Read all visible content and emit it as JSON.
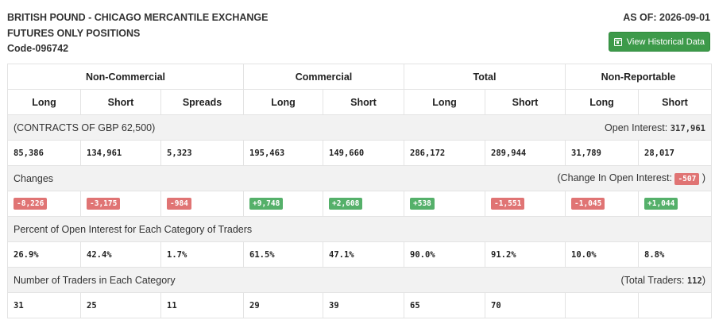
{
  "header": {
    "title_line1": "BRITISH POUND - CHICAGO MERCANTILE EXCHANGE",
    "title_line2": "FUTURES ONLY POSITIONS",
    "code": "Code-096742",
    "as_of": "AS OF: 2026-09-01",
    "history_button": "View Historical Data"
  },
  "groups": [
    "Non-Commercial",
    "Commercial",
    "Total",
    "Non-Reportable"
  ],
  "subheaders": [
    "Long",
    "Short",
    "Spreads",
    "Long",
    "Short",
    "Long",
    "Short",
    "Long",
    "Short"
  ],
  "contracts": {
    "label": "(CONTRACTS OF GBP 62,500)",
    "open_interest_label": "Open Interest:",
    "open_interest_value": "317,961",
    "values": [
      "85,386",
      "134,961",
      "5,323",
      "195,463",
      "149,660",
      "286,172",
      "289,944",
      "31,789",
      "28,017"
    ]
  },
  "changes": {
    "label": "Changes",
    "change_oi_label": "(Change In Open Interest:",
    "change_oi_value": "-507",
    "change_oi_close": ")",
    "values": [
      {
        "text": "-8,226",
        "sign": "neg"
      },
      {
        "text": "-3,175",
        "sign": "neg"
      },
      {
        "text": "-984",
        "sign": "neg"
      },
      {
        "text": "+9,748",
        "sign": "pos"
      },
      {
        "text": "+2,608",
        "sign": "pos"
      },
      {
        "text": "+538",
        "sign": "pos"
      },
      {
        "text": "-1,551",
        "sign": "neg"
      },
      {
        "text": "-1,045",
        "sign": "neg"
      },
      {
        "text": "+1,044",
        "sign": "pos"
      }
    ]
  },
  "percent": {
    "label": "Percent of Open Interest for Each Category of Traders",
    "values": [
      "26.9%",
      "42.4%",
      "1.7%",
      "61.5%",
      "47.1%",
      "90.0%",
      "91.2%",
      "10.0%",
      "8.8%"
    ]
  },
  "traders": {
    "label": "Number of Traders in Each Category",
    "total_label": "(Total Traders:",
    "total_value": "112",
    "total_close": ")",
    "values": [
      "31",
      "25",
      "11",
      "29",
      "39",
      "65",
      "70",
      "",
      ""
    ]
  },
  "colors": {
    "negative": "#e07474",
    "positive": "#55b06a",
    "button": "#3d9a4a"
  }
}
